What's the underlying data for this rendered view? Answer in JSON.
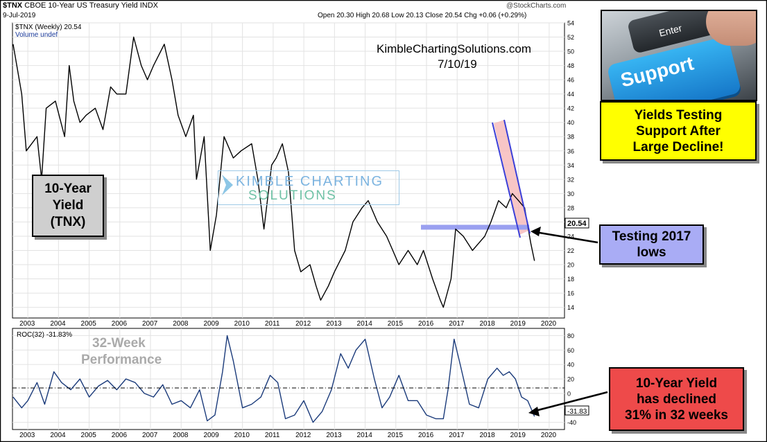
{
  "header": {
    "symbol": "$TNX",
    "name": "CBOE 10-Year US Treasury Yield",
    "exchange": "INDX",
    "date": "9-Jul-2019",
    "credit": "@StockCharts.com",
    "quote": "Open 20.30  High 20.68  Low 20.13  Close 20.54  Chg +0.06 (+0.29%)",
    "legend_price": "$TNX (Weekly) 20.54",
    "legend_volume": "Volume undef"
  },
  "watermark": {
    "site": "KimbleChartingSolutions.com",
    "date": "7/10/19",
    "logo_line1": "KIMBLE CHARTING",
    "logo_line2": "SOLUTIONS"
  },
  "callouts": {
    "tnx": [
      "10-Year",
      "Yield",
      "(TNX)"
    ],
    "support": [
      "Yields Testing",
      "Support After",
      "Large Decline!"
    ],
    "testing": [
      "Testing 2017",
      "lows"
    ],
    "declined": [
      "10-Year Yield",
      "has declined",
      "31% in 32 weeks"
    ],
    "performance": [
      "32-Week",
      "Performance"
    ],
    "photo_key_support": "Support",
    "photo_key_enter": "Enter"
  },
  "colors": {
    "price": "#000000",
    "roc": "#1a3a7a",
    "support_line": "#9aa0f0",
    "channel": "#3b3fd8",
    "channel_fill": "#f6b8b8"
  },
  "chart_data": [
    {
      "type": "line",
      "title": "$TNX (Weekly) 20.54",
      "x_ticks": [
        "2003",
        "2004",
        "2005",
        "2006",
        "2007",
        "2008",
        "2009",
        "2010",
        "2011",
        "2012",
        "2013",
        "2014",
        "2015",
        "2016",
        "2017",
        "2018",
        "2019",
        "2020"
      ],
      "y_ticks": [
        "14",
        "16",
        "18",
        "20",
        "22",
        "24",
        "26",
        "28",
        "30",
        "32",
        "34",
        "36",
        "38",
        "40",
        "42",
        "44",
        "46",
        "48",
        "50",
        "52",
        "54"
      ],
      "ylim": [
        12.5,
        54
      ],
      "xlim": [
        2002.5,
        2020.5
      ],
      "last_value_label": "20.54",
      "series": [
        {
          "x": [
            2002.52,
            2002.8,
            2002.95,
            2003.3,
            2003.45,
            2003.6,
            2003.9,
            2004.2,
            2004.35,
            2004.5,
            2004.7,
            2004.9,
            2005.2,
            2005.45,
            2005.7,
            2005.9,
            2006.2,
            2006.45,
            2006.7,
            2006.9,
            2007.1,
            2007.45,
            2007.7,
            2007.9,
            2008.15,
            2008.4,
            2008.5,
            2008.75,
            2008.95,
            2009.15,
            2009.4,
            2009.7,
            2009.95,
            2010.3,
            2010.5,
            2010.7,
            2010.95,
            2011.1,
            2011.3,
            2011.5,
            2011.7,
            2011.9,
            2012.2,
            2012.4,
            2012.55,
            2012.8,
            2013.0,
            2013.35,
            2013.6,
            2013.9,
            2014.1,
            2014.4,
            2014.7,
            2014.9,
            2015.1,
            2015.4,
            2015.7,
            2015.9,
            2016.2,
            2016.45,
            2016.55,
            2016.8,
            2016.95,
            2017.2,
            2017.5,
            2017.7,
            2017.9,
            2018.1,
            2018.35,
            2018.6,
            2018.8,
            2019.0,
            2019.2,
            2019.4,
            2019.52
          ],
          "y": [
            51,
            44,
            36,
            38,
            32,
            42,
            43,
            38,
            48,
            43,
            40,
            41,
            42,
            39,
            45,
            44,
            44,
            52,
            48,
            46,
            48,
            51,
            46,
            41,
            38,
            41,
            32,
            38,
            22,
            27,
            38,
            35,
            36,
            37,
            32,
            25,
            34,
            35,
            37,
            33,
            22,
            19,
            20,
            17,
            15,
            17,
            19,
            22,
            26,
            28,
            29,
            26,
            24,
            22,
            20,
            22,
            20,
            22,
            18,
            15,
            14,
            18,
            25,
            24,
            22,
            23,
            24,
            26,
            29,
            28,
            30,
            29,
            28,
            23,
            20.54
          ]
        }
      ]
    },
    {
      "type": "line",
      "title": "ROC(32) -31.83%",
      "x_ticks": [
        "2003",
        "2004",
        "2005",
        "2006",
        "2007",
        "2008",
        "2009",
        "2010",
        "2011",
        "2012",
        "2013",
        "2014",
        "2015",
        "2016",
        "2017",
        "2018",
        "2019",
        "2020"
      ],
      "y_ticks": [
        "-40",
        "-20",
        "0",
        "20",
        "40",
        "60",
        "80"
      ],
      "ylim": [
        -50,
        90
      ],
      "xlim": [
        2002.5,
        2020.5
      ],
      "last_value_label": "-31.83",
      "series": [
        {
          "name": "ROC(32)",
          "x": [
            2002.52,
            2002.8,
            2003.0,
            2003.3,
            2003.55,
            2003.85,
            2004.1,
            2004.4,
            2004.7,
            2005.0,
            2005.3,
            2005.6,
            2005.9,
            2006.2,
            2006.5,
            2006.8,
            2007.1,
            2007.4,
            2007.7,
            2008.0,
            2008.3,
            2008.6,
            2008.85,
            2009.1,
            2009.35,
            2009.5,
            2009.7,
            2010.0,
            2010.3,
            2010.6,
            2010.9,
            2011.15,
            2011.4,
            2011.7,
            2012.0,
            2012.3,
            2012.6,
            2012.9,
            2013.2,
            2013.45,
            2013.7,
            2014.0,
            2014.3,
            2014.55,
            2014.8,
            2015.1,
            2015.4,
            2015.7,
            2016.0,
            2016.3,
            2016.55,
            2016.7,
            2016.9,
            2017.1,
            2017.4,
            2017.7,
            2018.0,
            2018.3,
            2018.5,
            2018.7,
            2018.9,
            2019.1,
            2019.3,
            2019.45,
            2019.52
          ],
          "y": [
            -5,
            -20,
            -10,
            15,
            -15,
            30,
            15,
            5,
            20,
            -5,
            10,
            18,
            5,
            20,
            15,
            0,
            -5,
            12,
            -15,
            -10,
            -20,
            5,
            -38,
            -30,
            30,
            80,
            45,
            -20,
            -15,
            -5,
            25,
            15,
            -35,
            -30,
            -10,
            -40,
            -25,
            5,
            55,
            35,
            60,
            75,
            20,
            -20,
            -5,
            25,
            -10,
            -10,
            -30,
            -35,
            -35,
            5,
            75,
            40,
            -15,
            -20,
            20,
            35,
            25,
            30,
            20,
            -5,
            -10,
            -25,
            -31.83
          ]
        }
      ]
    }
  ]
}
